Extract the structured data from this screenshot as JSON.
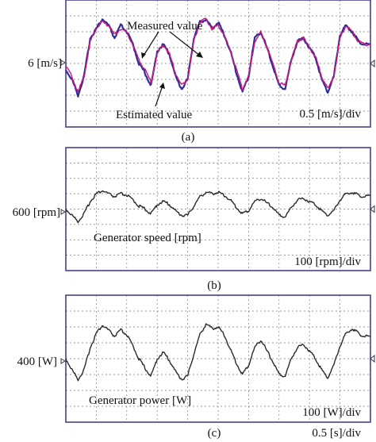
{
  "colors": {
    "frame": "#4a3f8a",
    "grid": "#7a7a7a",
    "trace": "#2b2b2b",
    "measured": "#2d2f9a",
    "estimated": "#d0157a"
  },
  "panels": [
    {
      "caption": "(a)",
      "center_label": "6 [m/s]",
      "scale_label": "0.5 [m/s]/div",
      "annotations": [
        "Measured value",
        "Estimated value"
      ],
      "chart_data": {
        "type": "line",
        "xlim": [
          0,
          5
        ],
        "ylim": [
          4,
          8
        ],
        "ylabel": "6 [m/s]",
        "series": [
          {
            "name": "Measured value",
            "color": "#2d2f9a",
            "x": [
              0,
              0.1,
              0.2,
              0.3,
              0.4,
              0.5,
              0.6,
              0.7,
              0.8,
              0.9,
              1.0,
              1.1,
              1.2,
              1.3,
              1.4,
              1.5,
              1.6,
              1.7,
              1.8,
              1.9,
              2.0,
              2.1,
              2.2,
              2.3,
              2.4,
              2.5,
              2.6,
              2.7,
              2.8,
              2.9,
              3.0,
              3.1,
              3.2,
              3.3,
              3.4,
              3.5,
              3.6,
              3.7,
              3.8,
              3.9,
              4.0,
              4.1,
              4.2,
              4.3,
              4.4,
              4.5,
              4.6,
              4.7,
              4.8,
              4.9,
              5.0
            ],
            "y": [
              5.8,
              5.5,
              5.0,
              5.6,
              6.8,
              7.1,
              7.4,
              7.2,
              6.8,
              7.2,
              7.0,
              6.6,
              6.0,
              5.7,
              5.3,
              6.4,
              6.6,
              6.3,
              5.6,
              5.2,
              5.5,
              6.8,
              7.3,
              7.4,
              7.1,
              7.3,
              6.9,
              6.4,
              5.7,
              5.1,
              5.6,
              6.8,
              7.0,
              6.5,
              5.9,
              5.3,
              5.2,
              6.1,
              6.7,
              6.8,
              6.5,
              6.2,
              5.5,
              5.1,
              5.6,
              6.9,
              7.2,
              7.0,
              6.7,
              6.6,
              6.6
            ]
          },
          {
            "name": "Estimated value",
            "color": "#d0157a",
            "x": [
              0,
              0.1,
              0.2,
              0.3,
              0.4,
              0.5,
              0.6,
              0.7,
              0.8,
              0.9,
              1.0,
              1.1,
              1.2,
              1.3,
              1.4,
              1.5,
              1.6,
              1.7,
              1.8,
              1.9,
              2.0,
              2.1,
              2.2,
              2.3,
              2.4,
              2.5,
              2.6,
              2.7,
              2.8,
              2.9,
              3.0,
              3.1,
              3.2,
              3.3,
              3.4,
              3.5,
              3.6,
              3.7,
              3.8,
              3.9,
              4.0,
              4.1,
              4.2,
              4.3,
              4.4,
              4.5,
              4.6,
              4.7,
              4.8,
              4.9,
              5.0
            ],
            "y": [
              5.9,
              5.6,
              5.1,
              5.6,
              6.7,
              7.1,
              7.3,
              7.2,
              6.9,
              7.1,
              7.0,
              6.6,
              6.1,
              5.8,
              5.4,
              6.3,
              6.6,
              6.3,
              5.7,
              5.3,
              5.5,
              6.7,
              7.3,
              7.4,
              7.1,
              7.2,
              6.9,
              6.4,
              5.8,
              5.2,
              5.6,
              6.7,
              7.0,
              6.5,
              6.0,
              5.4,
              5.3,
              6.1,
              6.7,
              6.8,
              6.5,
              6.2,
              5.6,
              5.2,
              5.6,
              6.8,
              7.2,
              7.0,
              6.7,
              6.6,
              6.6
            ]
          }
        ]
      }
    },
    {
      "caption": "(b)",
      "center_label": "600 [rpm]",
      "scale_label": "100 [rpm]/div",
      "annotations": [
        "Generator speed [rpm]"
      ],
      "chart_data": {
        "type": "line",
        "xlim": [
          0,
          5
        ],
        "ylim": [
          200,
          1000
        ],
        "ylabel": "600 [rpm]",
        "series": [
          {
            "name": "Generator speed [rpm]",
            "color": "#2b2b2b",
            "x": [
              0,
              0.1,
              0.2,
              0.3,
              0.4,
              0.5,
              0.6,
              0.7,
              0.8,
              0.9,
              1.0,
              1.1,
              1.2,
              1.3,
              1.4,
              1.5,
              1.6,
              1.7,
              1.8,
              1.9,
              2.0,
              2.1,
              2.2,
              2.3,
              2.4,
              2.5,
              2.6,
              2.7,
              2.8,
              2.9,
              3.0,
              3.1,
              3.2,
              3.3,
              3.4,
              3.5,
              3.6,
              3.7,
              3.8,
              3.9,
              4.0,
              4.1,
              4.2,
              4.3,
              4.4,
              4.5,
              4.6,
              4.7,
              4.8,
              4.9,
              5.0
            ],
            "y": [
              600,
              560,
              520,
              570,
              650,
              700,
              720,
              700,
              680,
              700,
              690,
              660,
              620,
              600,
              570,
              630,
              650,
              630,
              590,
              560,
              560,
              620,
              680,
              710,
              700,
              710,
              690,
              660,
              610,
              570,
              590,
              650,
              670,
              640,
              610,
              560,
              550,
              610,
              660,
              670,
              650,
              630,
              590,
              560,
              590,
              660,
              700,
              710,
              690,
              680,
              690
            ]
          }
        ]
      }
    },
    {
      "caption": "(c)",
      "center_label": "400 [W]",
      "scale_label": "100 [W]/div",
      "time_label": "0.5 [s]/div",
      "annotations": [
        "Generator power [W]"
      ],
      "chart_data": {
        "type": "line",
        "xlim": [
          0,
          5
        ],
        "ylim": [
          0,
          800
        ],
        "ylabel": "400 [W]",
        "series": [
          {
            "name": "Generator power [W]",
            "color": "#2b2b2b",
            "x": [
              0,
              0.1,
              0.2,
              0.3,
              0.4,
              0.5,
              0.6,
              0.7,
              0.8,
              0.9,
              1.0,
              1.1,
              1.2,
              1.3,
              1.4,
              1.5,
              1.6,
              1.7,
              1.8,
              1.9,
              2.0,
              2.1,
              2.2,
              2.3,
              2.4,
              2.5,
              2.6,
              2.7,
              2.8,
              2.9,
              3.0,
              3.1,
              3.2,
              3.3,
              3.4,
              3.5,
              3.6,
              3.7,
              3.8,
              3.9,
              4.0,
              4.1,
              4.2,
              4.3,
              4.4,
              4.5,
              4.6,
              4.7,
              4.8,
              4.9,
              5.0
            ],
            "y": [
              400,
              330,
              270,
              330,
              470,
              560,
              610,
              580,
              540,
              580,
              550,
              480,
              400,
              340,
              290,
              400,
              440,
              390,
              320,
              270,
              290,
              430,
              550,
              620,
              590,
              600,
              550,
              460,
              370,
              300,
              360,
              470,
              520,
              450,
              380,
              300,
              290,
              400,
              470,
              490,
              450,
              400,
              330,
              280,
              360,
              480,
              560,
              590,
              560,
              540,
              540
            ]
          }
        ]
      }
    }
  ]
}
